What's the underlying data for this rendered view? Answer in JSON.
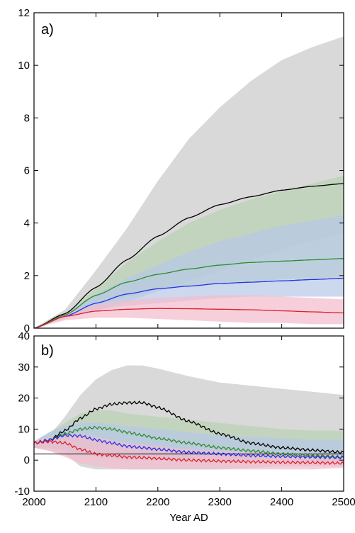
{
  "chart_data": [
    {
      "type": "area",
      "panel_label": "a)",
      "xlim": [
        2000,
        2500
      ],
      "ylim": [
        0,
        12
      ],
      "yticks": [
        0,
        2,
        4,
        6,
        8,
        10,
        12
      ],
      "xticks": [
        2000,
        2100,
        2200,
        2300,
        2400,
        2500
      ],
      "x_tick_labels_shown": false,
      "grid": false,
      "x": [
        2000,
        2050,
        2100,
        2150,
        2200,
        2250,
        2300,
        2350,
        2400,
        2450,
        2500
      ],
      "bands": [
        {
          "color": "#d9d9d9",
          "lower": [
            0,
            0.35,
            0.65,
            1.0,
            1.4,
            1.8,
            2.2,
            2.6,
            3.0,
            3.3,
            3.6
          ],
          "upper": [
            0,
            0.7,
            2.2,
            3.8,
            5.6,
            7.2,
            8.4,
            9.4,
            10.2,
            10.7,
            11.1
          ]
        },
        {
          "color": "#bad1b3",
          "lower": [
            0,
            0.4,
            0.9,
            1.2,
            1.45,
            1.6,
            1.7,
            1.8,
            1.85,
            1.9,
            1.95
          ],
          "upper": [
            0,
            0.55,
            1.5,
            2.5,
            3.3,
            4.0,
            4.5,
            4.9,
            5.2,
            5.5,
            5.8
          ]
        },
        {
          "color": "#b7c9e6",
          "lower": [
            0,
            0.4,
            0.7,
            0.85,
            0.95,
            1.05,
            1.15,
            1.2,
            1.2,
            1.2,
            1.2
          ],
          "upper": [
            0,
            0.55,
            1.3,
            1.9,
            2.4,
            2.9,
            3.3,
            3.6,
            3.9,
            4.1,
            4.3
          ]
        },
        {
          "color": "#f3bccd",
          "lower": [
            0,
            0.3,
            0.4,
            0.4,
            0.35,
            0.3,
            0.25,
            0.2,
            0.2,
            0.15,
            0.15
          ],
          "upper": [
            0,
            0.55,
            0.9,
            1.05,
            1.15,
            1.2,
            1.25,
            1.25,
            1.2,
            1.15,
            1.1
          ]
        }
      ],
      "series": [
        {
          "color": "#000000",
          "values": [
            0,
            0.55,
            1.55,
            2.6,
            3.5,
            4.2,
            4.7,
            5.0,
            5.25,
            5.4,
            5.5
          ]
        },
        {
          "color": "#2e8b2e",
          "values": [
            0,
            0.5,
            1.25,
            1.75,
            2.05,
            2.25,
            2.4,
            2.5,
            2.55,
            2.6,
            2.65
          ]
        },
        {
          "color": "#2432e6",
          "values": [
            0,
            0.45,
            0.95,
            1.3,
            1.5,
            1.6,
            1.7,
            1.75,
            1.8,
            1.85,
            1.9
          ]
        },
        {
          "color": "#e0202a",
          "values": [
            0,
            0.45,
            0.65,
            0.72,
            0.75,
            0.74,
            0.72,
            0.7,
            0.66,
            0.62,
            0.58
          ]
        }
      ]
    },
    {
      "type": "area",
      "panel_label": "b)",
      "xlim": [
        2000,
        2500
      ],
      "ylim": [
        -10,
        40
      ],
      "yticks": [
        -10,
        0,
        10,
        20,
        30,
        40
      ],
      "xticks": [
        2000,
        2100,
        2200,
        2300,
        2400,
        2500
      ],
      "x_tick_labels": [
        "2000",
        "2100",
        "2200",
        "2300",
        "2400",
        "2500"
      ],
      "xlabel": "Year AD",
      "grid": false,
      "baseline": 2,
      "x": [
        2000,
        2025,
        2050,
        2075,
        2100,
        2125,
        2150,
        2175,
        2200,
        2250,
        2300,
        2350,
        2400,
        2450,
        2500
      ],
      "bands": [
        {
          "color": "#d9d9d9",
          "lower": [
            4,
            3,
            2,
            -2,
            -3,
            -3,
            -3,
            -3,
            -3,
            -3,
            -3,
            -2.5,
            -2,
            -2,
            -2
          ],
          "upper": [
            6,
            8,
            14,
            21,
            26,
            29,
            30.5,
            30.5,
            29.5,
            27,
            25,
            24,
            23,
            22,
            21
          ]
        },
        {
          "color": "#bad1b3",
          "lower": [
            4,
            4,
            3,
            2,
            1.5,
            1,
            1,
            0.5,
            0.5,
            0.5,
            0,
            0,
            0,
            0,
            0
          ],
          "upper": [
            6,
            9,
            12,
            15,
            16,
            16,
            15,
            14.5,
            14,
            13,
            12,
            11,
            10,
            9.5,
            9.5
          ]
        },
        {
          "color": "#b7c9e6",
          "lower": [
            4,
            4,
            3,
            2,
            1,
            0.5,
            0,
            0,
            0,
            0,
            0,
            -0.5,
            -0.5,
            -0.5,
            -0.5
          ],
          "upper": [
            6,
            9,
            11,
            12,
            12,
            11.5,
            11,
            10.5,
            10,
            9,
            8,
            7.5,
            7,
            6.5,
            6.5
          ]
        },
        {
          "color": "#f3bccd",
          "lower": [
            4,
            3,
            1,
            -1,
            -2,
            -2.5,
            -3,
            -3,
            -3,
            -3,
            -3,
            -3,
            -3,
            -3,
            -2.5
          ],
          "upper": [
            6,
            7.5,
            8.5,
            8.5,
            7.5,
            6.5,
            5.5,
            5,
            4.5,
            3.5,
            3,
            2.5,
            2,
            2,
            1.5
          ]
        }
      ],
      "series": [
        {
          "color": "#000000",
          "values": [
            5.5,
            6.5,
            9.5,
            13.5,
            16.5,
            18,
            18.5,
            18.5,
            17,
            12.5,
            8.5,
            5.5,
            4,
            3.2,
            2.5
          ]
        },
        {
          "color": "#2e8b2e",
          "values": [
            5.5,
            6.5,
            8.5,
            10,
            10.5,
            10,
            9,
            8,
            7,
            5.5,
            4,
            3,
            2,
            1.5,
            1
          ]
        },
        {
          "color": "#2432e6",
          "values": [
            5.5,
            6.5,
            8,
            7.8,
            6.5,
            5.5,
            4.5,
            4,
            3.5,
            2.5,
            2,
            1.5,
            1.2,
            1,
            0.8
          ]
        },
        {
          "color": "#e0202a",
          "values": [
            5.5,
            6,
            5.5,
            3.5,
            2,
            1.5,
            1,
            0.8,
            0.5,
            0,
            -0.3,
            -0.5,
            -0.7,
            -0.8,
            -1
          ]
        }
      ]
    }
  ]
}
